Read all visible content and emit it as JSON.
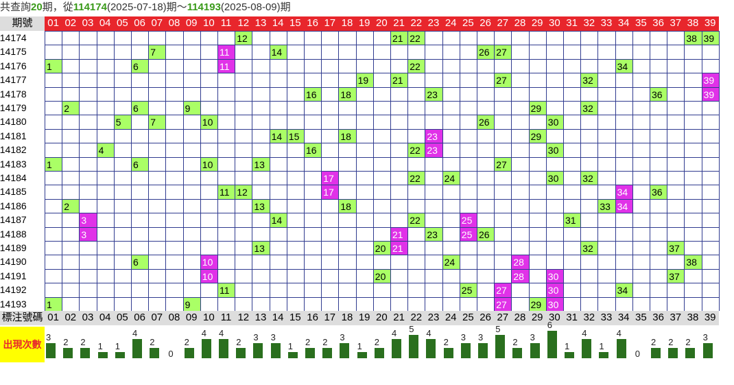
{
  "summary": {
    "prefix": "共查詢",
    "count": "20",
    "mid1": "期，從",
    "start": "114174",
    "start_date": "(2025-07-18)期～",
    "end": "114193",
    "end_date": "(2025-08-09)期"
  },
  "header_label": "期號",
  "footer_label": "標注號碼",
  "count_label": "出現次數",
  "numbers": [
    "01",
    "02",
    "03",
    "04",
    "05",
    "06",
    "07",
    "08",
    "09",
    "10",
    "11",
    "12",
    "13",
    "14",
    "15",
    "16",
    "17",
    "18",
    "19",
    "20",
    "21",
    "22",
    "23",
    "24",
    "25",
    "26",
    "27",
    "28",
    "29",
    "30",
    "31",
    "32",
    "33",
    "34",
    "35",
    "36",
    "37",
    "38",
    "39"
  ],
  "colors": {
    "header_red": "#e8262c",
    "green_mark": "#aaff66",
    "magenta_mark": "#e032e8",
    "bar_green": "#2a6f1e",
    "grid_blue": "#2f3a8f"
  },
  "chart_data": {
    "type": "table",
    "draws": [
      {
        "period": "114174",
        "nums": [
          12,
          21,
          22,
          38,
          39
        ],
        "repeat": []
      },
      {
        "period": "114175",
        "nums": [
          7,
          11,
          14,
          26,
          27
        ],
        "repeat": [
          11
        ]
      },
      {
        "period": "114176",
        "nums": [
          1,
          6,
          11,
          22,
          34
        ],
        "repeat": [
          11
        ]
      },
      {
        "period": "114177",
        "nums": [
          19,
          21,
          27,
          32,
          39
        ],
        "repeat": [
          39
        ]
      },
      {
        "period": "114178",
        "nums": [
          16,
          18,
          23,
          36,
          39
        ],
        "repeat": [
          39
        ]
      },
      {
        "period": "114179",
        "nums": [
          2,
          6,
          9,
          29,
          32
        ],
        "repeat": []
      },
      {
        "period": "114180",
        "nums": [
          5,
          7,
          10,
          26,
          30
        ],
        "repeat": []
      },
      {
        "period": "114181",
        "nums": [
          14,
          15,
          18,
          23,
          29
        ],
        "repeat": [
          23
        ]
      },
      {
        "period": "114182",
        "nums": [
          4,
          16,
          22,
          23,
          30
        ],
        "repeat": [
          23
        ]
      },
      {
        "period": "114183",
        "nums": [
          1,
          6,
          10,
          13,
          27
        ],
        "repeat": []
      },
      {
        "period": "114184",
        "nums": [
          17,
          22,
          24,
          30,
          32
        ],
        "repeat": [
          17
        ]
      },
      {
        "period": "114185",
        "nums": [
          11,
          12,
          17,
          34,
          36
        ],
        "repeat": [
          17,
          34
        ]
      },
      {
        "period": "114186",
        "nums": [
          2,
          13,
          18,
          33,
          34
        ],
        "repeat": [
          34
        ]
      },
      {
        "period": "114187",
        "nums": [
          3,
          14,
          22,
          25,
          31
        ],
        "repeat": [
          3,
          25
        ]
      },
      {
        "period": "114188",
        "nums": [
          3,
          21,
          23,
          25,
          26
        ],
        "repeat": [
          3,
          21,
          25
        ]
      },
      {
        "period": "114189",
        "nums": [
          13,
          20,
          21,
          32,
          37
        ],
        "repeat": [
          21
        ]
      },
      {
        "period": "114190",
        "nums": [
          6,
          10,
          24,
          28,
          38
        ],
        "repeat": [
          10,
          28
        ]
      },
      {
        "period": "114191",
        "nums": [
          10,
          20,
          28,
          30,
          37
        ],
        "repeat": [
          10,
          28,
          30
        ]
      },
      {
        "period": "114192",
        "nums": [
          11,
          25,
          27,
          30,
          34
        ],
        "repeat": [
          27,
          30
        ]
      },
      {
        "period": "114193",
        "nums": [
          1,
          9,
          27,
          29,
          30
        ],
        "repeat": [
          27,
          30
        ]
      }
    ],
    "counts": [
      3,
      2,
      2,
      1,
      1,
      4,
      2,
      0,
      2,
      4,
      4,
      2,
      3,
      3,
      1,
      2,
      2,
      3,
      1,
      2,
      4,
      5,
      4,
      2,
      3,
      3,
      5,
      2,
      3,
      6,
      1,
      4,
      1,
      4,
      0,
      2,
      2,
      2,
      3
    ]
  }
}
